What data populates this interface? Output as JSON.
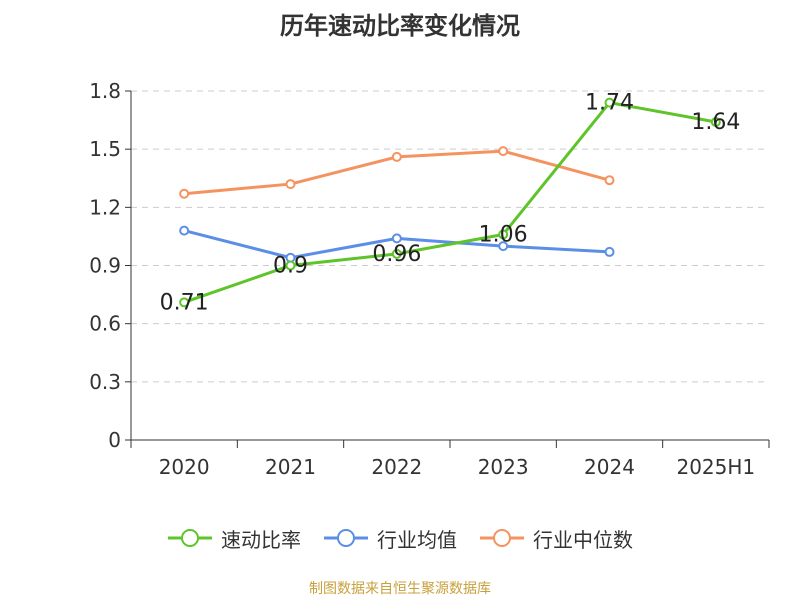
{
  "chart_data": {
    "type": "line",
    "title": "历年速动比率变化情况",
    "categories": [
      "2020",
      "2021",
      "2022",
      "2023",
      "2024",
      "2025H1"
    ],
    "y_ticks": [
      "0",
      "0.3",
      "0.6",
      "0.9",
      "1.2",
      "1.5",
      "1.8"
    ],
    "ylim": [
      0,
      1.8
    ],
    "grid": true,
    "legend_position": "bottom",
    "series": [
      {
        "name": "速动比率",
        "color": "#5ec42a",
        "values": [
          0.71,
          0.9,
          0.96,
          1.06,
          1.74,
          1.64
        ],
        "labels": [
          "0.71",
          "0.9",
          "0.96",
          "1.06",
          "1.74",
          "1.64"
        ]
      },
      {
        "name": "行业均值",
        "color": "#5b8ee6",
        "values": [
          1.08,
          0.94,
          1.04,
          1.0,
          0.97,
          null
        ]
      },
      {
        "name": "行业中位数",
        "color": "#f59360",
        "values": [
          1.27,
          1.32,
          1.46,
          1.49,
          1.34,
          null
        ]
      }
    ]
  },
  "source_text": "制图数据来自恒生聚源数据库"
}
